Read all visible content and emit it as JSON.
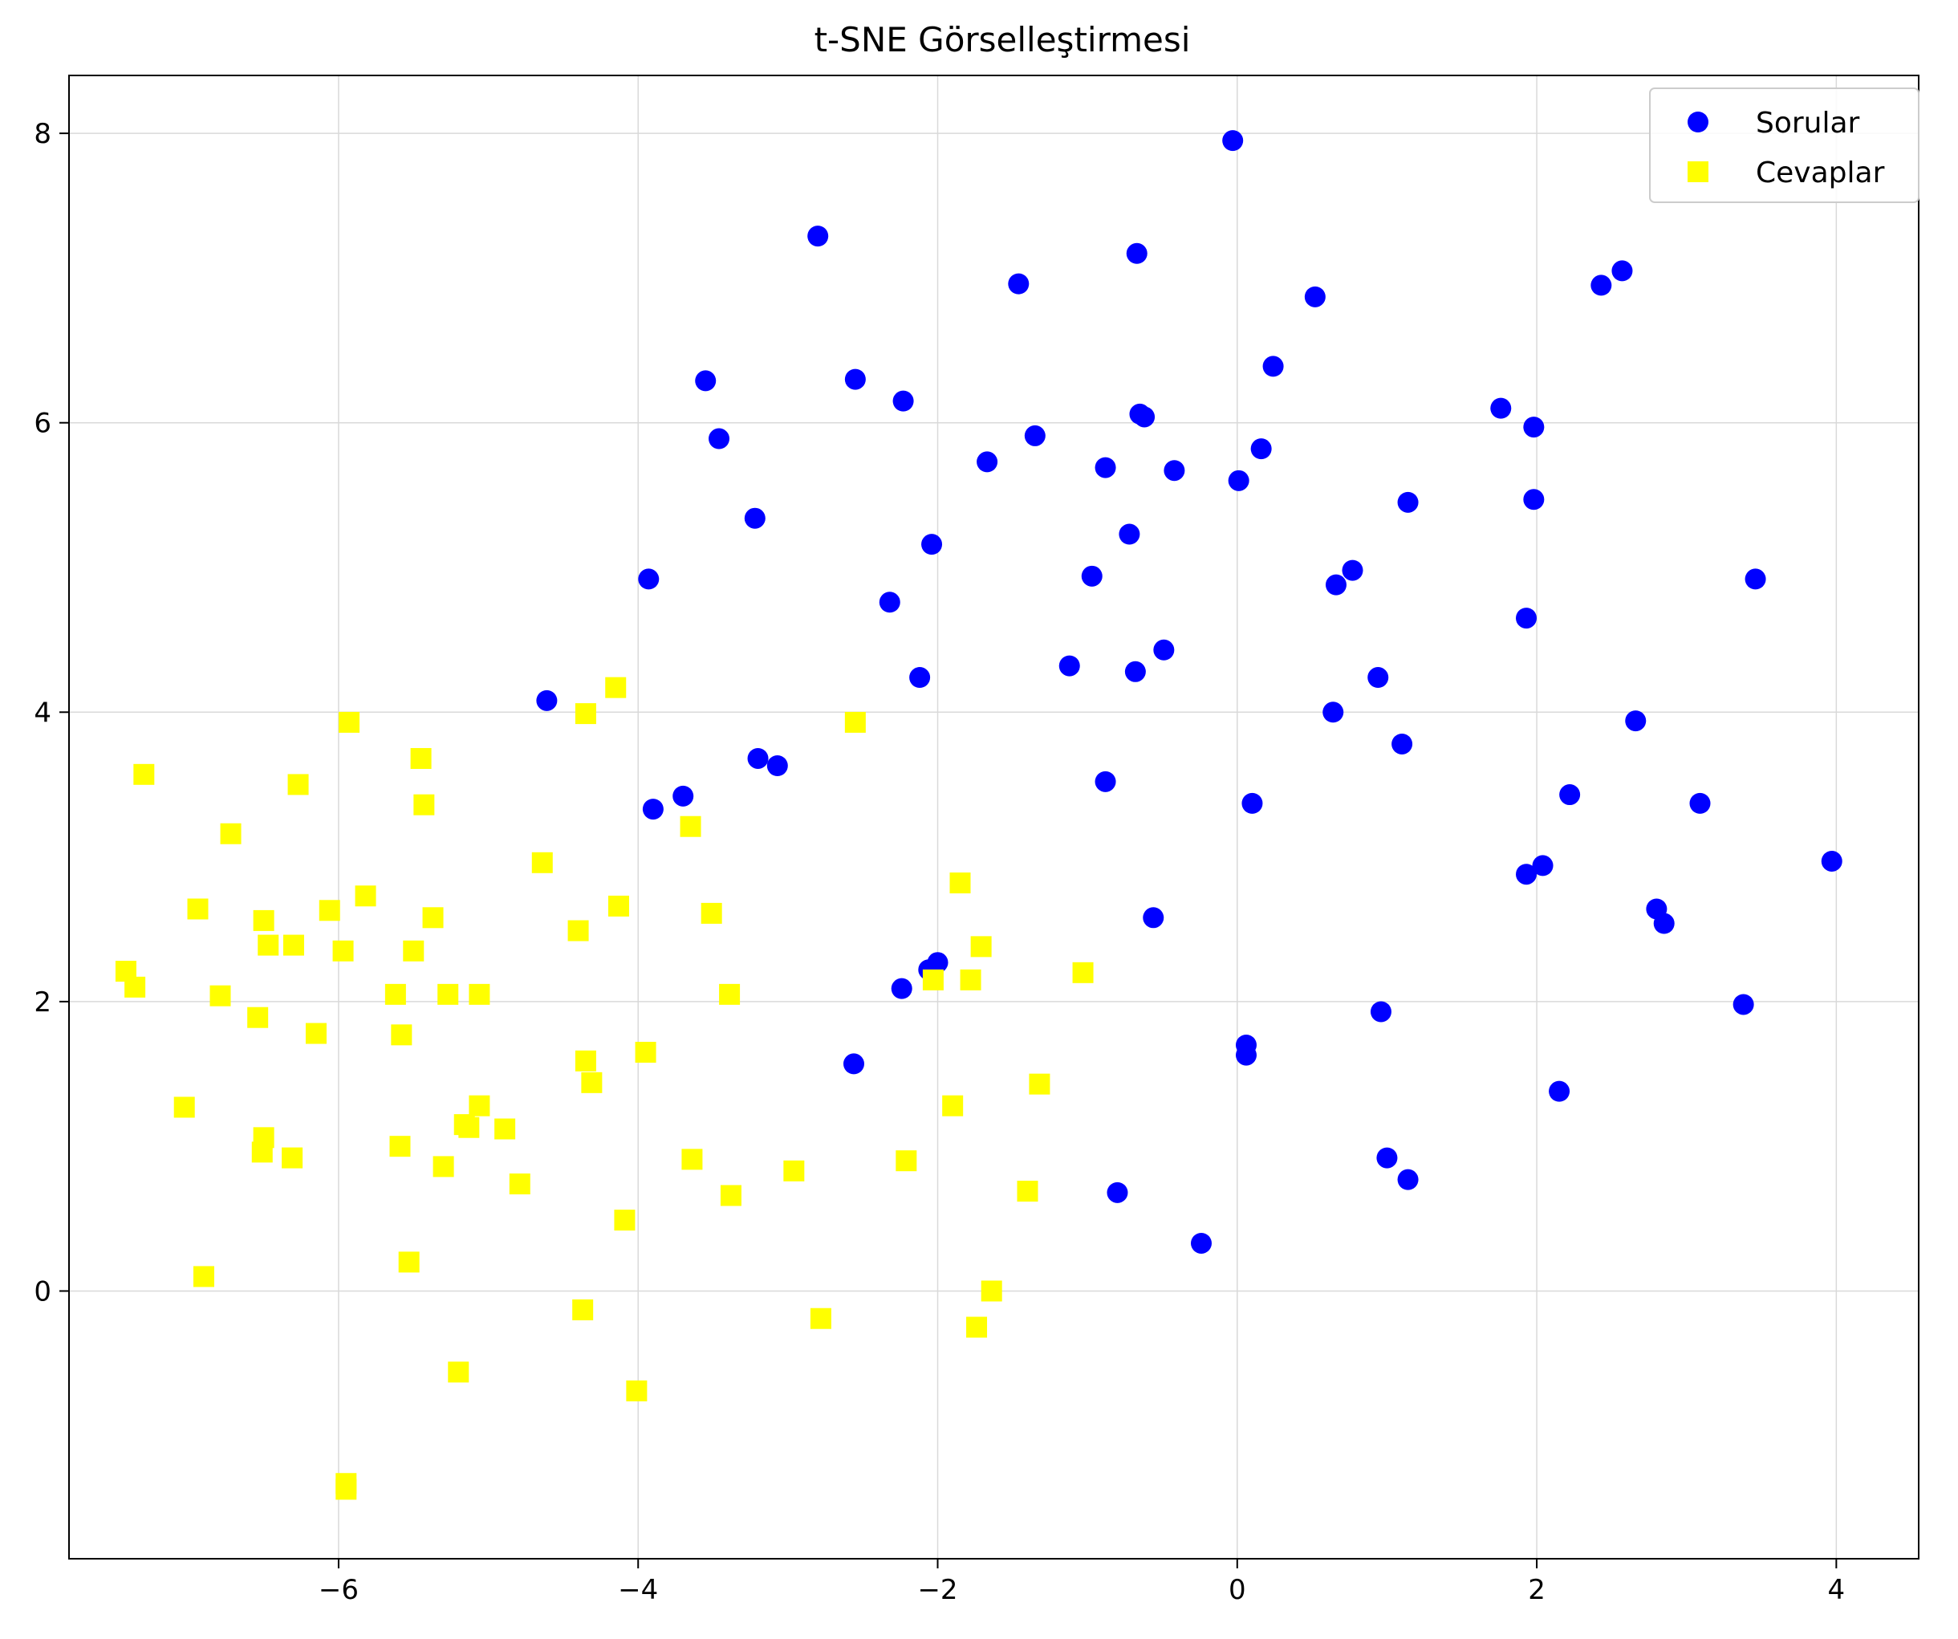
{
  "chart_data": {
    "type": "scatter",
    "title": "t-SNE Görselleştirmesi",
    "xlabel": "",
    "ylabel": "",
    "xlim": [
      -7.8,
      4.55
    ],
    "ylim": [
      -1.85,
      8.4
    ],
    "xticks": [
      -6,
      -4,
      -2,
      0,
      2,
      4
    ],
    "yticks": [
      0,
      2,
      4,
      6,
      8
    ],
    "xtick_labels": [
      "−6",
      "−4",
      "−2",
      "0",
      "2",
      "4"
    ],
    "ytick_labels": [
      "0",
      "2",
      "4",
      "6",
      "8"
    ],
    "grid": true,
    "legend": "top-right",
    "series": [
      {
        "name": "Sorular",
        "marker": "circle",
        "color": "#0000ff",
        "points": [
          [
            -0.03,
            7.95
          ],
          [
            -2.8,
            7.29
          ],
          [
            -0.67,
            7.17
          ],
          [
            -1.46,
            6.96
          ],
          [
            0.52,
            6.87
          ],
          [
            2.43,
            6.95
          ],
          [
            2.57,
            7.05
          ],
          [
            -3.55,
            6.29
          ],
          [
            -2.55,
            6.3
          ],
          [
            -2.23,
            6.15
          ],
          [
            0.24,
            6.39
          ],
          [
            -0.65,
            6.06
          ],
          [
            -0.62,
            6.04
          ],
          [
            1.76,
            6.1
          ],
          [
            1.98,
            5.97
          ],
          [
            -3.46,
            5.89
          ],
          [
            -1.35,
            5.91
          ],
          [
            -1.67,
            5.73
          ],
          [
            -0.88,
            5.69
          ],
          [
            -0.42,
            5.67
          ],
          [
            0.16,
            5.82
          ],
          [
            0.01,
            5.6
          ],
          [
            1.14,
            5.45
          ],
          [
            1.98,
            5.47
          ],
          [
            -3.22,
            5.34
          ],
          [
            -0.72,
            5.23
          ],
          [
            -2.04,
            5.16
          ],
          [
            -0.97,
            4.94
          ],
          [
            0.66,
            4.88
          ],
          [
            0.77,
            4.98
          ],
          [
            3.46,
            4.92
          ],
          [
            -3.93,
            4.92
          ],
          [
            -2.32,
            4.76
          ],
          [
            1.93,
            4.65
          ],
          [
            -0.49,
            4.43
          ],
          [
            -1.12,
            4.32
          ],
          [
            -0.68,
            4.28
          ],
          [
            -2.12,
            4.24
          ],
          [
            0.94,
            4.24
          ],
          [
            -4.61,
            4.08
          ],
          [
            0.64,
            4.0
          ],
          [
            2.66,
            3.94
          ],
          [
            1.1,
            3.78
          ],
          [
            -3.2,
            3.68
          ],
          [
            -3.07,
            3.63
          ],
          [
            -0.88,
            3.52
          ],
          [
            -3.7,
            3.42
          ],
          [
            -3.9,
            3.33
          ],
          [
            0.1,
            3.37
          ],
          [
            2.22,
            3.43
          ],
          [
            3.09,
            3.37
          ],
          [
            3.97,
            2.97
          ],
          [
            2.04,
            2.94
          ],
          [
            1.93,
            2.88
          ],
          [
            2.8,
            2.64
          ],
          [
            2.85,
            2.54
          ],
          [
            -0.56,
            2.58
          ],
          [
            -2.0,
            2.27
          ],
          [
            -2.06,
            2.22
          ],
          [
            -2.24,
            2.09
          ],
          [
            3.38,
            1.98
          ],
          [
            0.96,
            1.93
          ],
          [
            0.06,
            1.7
          ],
          [
            0.06,
            1.63
          ],
          [
            -2.56,
            1.57
          ],
          [
            2.15,
            1.38
          ],
          [
            1.0,
            0.92
          ],
          [
            1.14,
            0.77
          ],
          [
            -0.8,
            0.68
          ],
          [
            -0.24,
            0.33
          ]
        ]
      },
      {
        "name": "Cevaplar",
        "marker": "square",
        "color": "#ffff00",
        "points": [
          [
            -4.15,
            4.17
          ],
          [
            -4.35,
            3.99
          ],
          [
            -5.93,
            3.93
          ],
          [
            -2.55,
            3.93
          ],
          [
            -5.45,
            3.68
          ],
          [
            -7.3,
            3.57
          ],
          [
            -6.27,
            3.5
          ],
          [
            -5.43,
            3.36
          ],
          [
            -3.65,
            3.21
          ],
          [
            -6.72,
            3.16
          ],
          [
            -4.64,
            2.96
          ],
          [
            -1.85,
            2.82
          ],
          [
            -5.82,
            2.73
          ],
          [
            -6.94,
            2.64
          ],
          [
            -6.06,
            2.63
          ],
          [
            -4.13,
            2.66
          ],
          [
            -3.51,
            2.61
          ],
          [
            -5.37,
            2.58
          ],
          [
            -6.5,
            2.56
          ],
          [
            -4.4,
            2.49
          ],
          [
            -6.47,
            2.39
          ],
          [
            -6.3,
            2.39
          ],
          [
            -1.71,
            2.38
          ],
          [
            -5.97,
            2.35
          ],
          [
            -5.5,
            2.35
          ],
          [
            -7.42,
            2.21
          ],
          [
            -1.03,
            2.2
          ],
          [
            -7.36,
            2.1
          ],
          [
            -2.03,
            2.15
          ],
          [
            -1.78,
            2.15
          ],
          [
            -6.79,
            2.04
          ],
          [
            -5.62,
            2.05
          ],
          [
            -5.27,
            2.05
          ],
          [
            -5.06,
            2.05
          ],
          [
            -3.39,
            2.05
          ],
          [
            -6.54,
            1.89
          ],
          [
            -6.15,
            1.78
          ],
          [
            -5.58,
            1.77
          ],
          [
            -3.95,
            1.65
          ],
          [
            -4.35,
            1.59
          ],
          [
            -4.31,
            1.44
          ],
          [
            -1.32,
            1.43
          ],
          [
            -7.03,
            1.27
          ],
          [
            -5.06,
            1.28
          ],
          [
            -1.9,
            1.28
          ],
          [
            -5.16,
            1.15
          ],
          [
            -5.13,
            1.13
          ],
          [
            -4.89,
            1.12
          ],
          [
            -6.5,
            1.06
          ],
          [
            -6.51,
            0.96
          ],
          [
            -5.59,
            1.0
          ],
          [
            -6.31,
            0.92
          ],
          [
            -3.64,
            0.91
          ],
          [
            -2.21,
            0.9
          ],
          [
            -5.3,
            0.86
          ],
          [
            -2.96,
            0.83
          ],
          [
            -4.79,
            0.74
          ],
          [
            -1.4,
            0.69
          ],
          [
            -3.38,
            0.66
          ],
          [
            -4.09,
            0.49
          ],
          [
            -5.53,
            0.2
          ],
          [
            -6.9,
            0.1
          ],
          [
            -1.64,
            0.0
          ],
          [
            -4.37,
            -0.13
          ],
          [
            -2.78,
            -0.19
          ],
          [
            -1.74,
            -0.25
          ],
          [
            -5.2,
            -0.56
          ],
          [
            -4.01,
            -0.69
          ],
          [
            -5.95,
            -1.33
          ],
          [
            -5.95,
            -1.37
          ]
        ]
      }
    ]
  }
}
